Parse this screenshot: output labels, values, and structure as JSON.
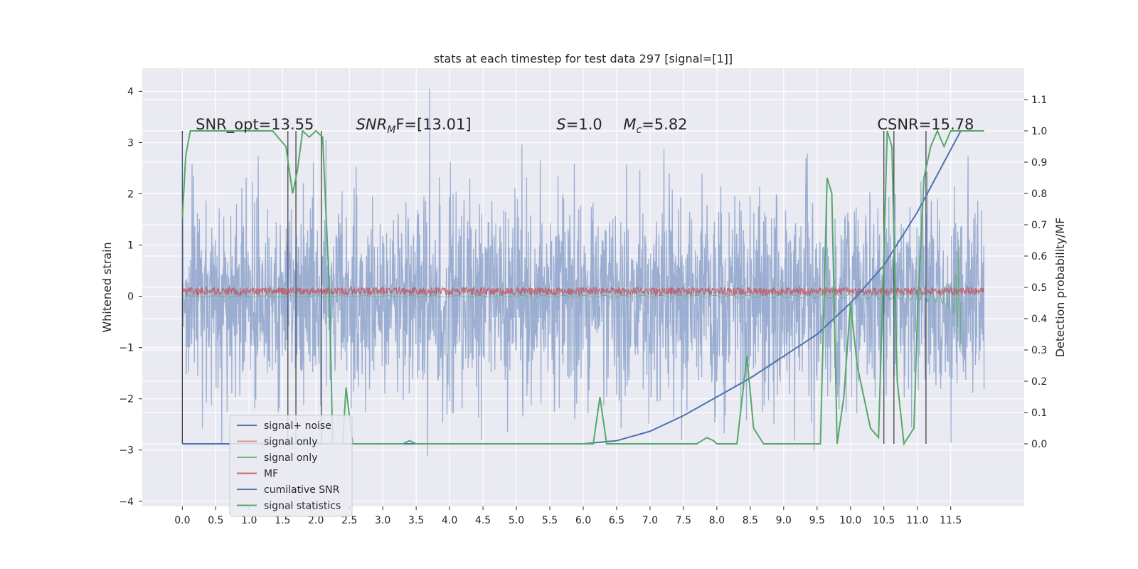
{
  "chart_data": {
    "type": "line",
    "title": "stats at each timestep for test data 297 [signal=[1]]",
    "ylabel": "Whitened strain",
    "y2label": "Detection probability/MF",
    "xlim": [
      -0.6,
      12.6
    ],
    "ylim": [
      -4.1,
      4.45
    ],
    "y2lim": [
      -0.2,
      1.2
    ],
    "x_ticks": [
      "0.0",
      "0.5",
      "1.0",
      "1.5",
      "2.0",
      "2.5",
      "3.0",
      "3.5",
      "4.0",
      "4.5",
      "5.0",
      "5.5",
      "6.0",
      "6.5",
      "7.0",
      "7.5",
      "8.0",
      "8.5",
      "9.0",
      "9.5",
      "10.0",
      "10.5",
      "11.0",
      "11.5"
    ],
    "y_ticks": [
      "4",
      "3",
      "2",
      "1",
      "0",
      "−1",
      "−2",
      "−3",
      "−4"
    ],
    "y2_ticks": [
      "1.1",
      "1.0",
      "0.9",
      "0.8",
      "0.7",
      "0.6",
      "0.5",
      "0.4",
      "0.3",
      "0.2",
      "0.1",
      "0.0"
    ],
    "grid": true,
    "annotations": [
      {
        "id": "snr_opt",
        "text": "SNR_opt=13.55",
        "x": 0.2,
        "y2": 1.0
      },
      {
        "id": "snr_mf",
        "text": "SNR",
        "sub": "M",
        "rest": "F=[13.01]",
        "x": 2.6,
        "y2": 1.0
      },
      {
        "id": "s",
        "text": "S",
        "rest": "=1.0",
        "x": 5.6,
        "y2": 1.0
      },
      {
        "id": "mc",
        "text": "M",
        "sub": "c",
        "rest": "=5.82",
        "x": 6.6,
        "y2": 1.0
      },
      {
        "id": "csnr",
        "text": "CSNR=15.78",
        "x": 10.4,
        "y2": 1.0
      }
    ],
    "vlines_x": [
      0.0,
      1.58,
      1.7,
      2.08,
      10.5,
      10.65,
      11.13
    ],
    "series": [
      {
        "name": "signal+ noise",
        "color": "#4c72b0",
        "alpha": 0.5,
        "axis": "left",
        "x_range": [
          0,
          12
        ],
        "amplitude_sigma": 1.0,
        "samples": 2400,
        "peak": {
          "x": 3.7,
          "y": 4.05
        }
      },
      {
        "name": "signal only",
        "color": "#dd8452",
        "axis": "left",
        "note": "chirp"
      },
      {
        "name": "signal only",
        "color": "#55a868",
        "axis": "left",
        "chirp_end_x": 11.65,
        "chirp_start_x": 6.0,
        "chirp_max_amp": 1.1
      },
      {
        "name": "MF",
        "color": "#c44e52",
        "axis": "left",
        "level": 0.1,
        "jitter": 0.08
      },
      {
        "name": "cumilative SNR",
        "color": "#4c72b0",
        "axis": "right",
        "points": [
          [
            0,
            0.0
          ],
          [
            6.0,
            0.0
          ],
          [
            6.5,
            0.01
          ],
          [
            7.0,
            0.04
          ],
          [
            7.5,
            0.09
          ],
          [
            8.0,
            0.15
          ],
          [
            8.5,
            0.21
          ],
          [
            9.0,
            0.28
          ],
          [
            9.5,
            0.35
          ],
          [
            10.0,
            0.45
          ],
          [
            10.5,
            0.57
          ],
          [
            11.0,
            0.74
          ],
          [
            11.3,
            0.86
          ],
          [
            11.65,
            1.0
          ]
        ]
      },
      {
        "name": "signal statistics",
        "color": "#55a868",
        "axis": "right",
        "points": [
          [
            0,
            0.72
          ],
          [
            0.05,
            0.92
          ],
          [
            0.12,
            1.0
          ],
          [
            1.35,
            1.0
          ],
          [
            1.55,
            0.95
          ],
          [
            1.65,
            0.8
          ],
          [
            1.72,
            0.87
          ],
          [
            1.8,
            1.0
          ],
          [
            1.9,
            0.98
          ],
          [
            2.0,
            1.0
          ],
          [
            2.1,
            0.98
          ],
          [
            2.2,
            0.5
          ],
          [
            2.25,
            0.0
          ],
          [
            2.4,
            0.0
          ],
          [
            2.45,
            0.18
          ],
          [
            2.55,
            0.0
          ],
          [
            3.3,
            0.0
          ],
          [
            3.4,
            0.01
          ],
          [
            3.5,
            0.0
          ],
          [
            6.15,
            0.0
          ],
          [
            6.25,
            0.15
          ],
          [
            6.35,
            0.0
          ],
          [
            7.7,
            0.0
          ],
          [
            7.85,
            0.02
          ],
          [
            7.95,
            0.01
          ],
          [
            8.0,
            0.0
          ],
          [
            8.3,
            0.0
          ],
          [
            8.45,
            0.28
          ],
          [
            8.55,
            0.05
          ],
          [
            8.7,
            0.0
          ],
          [
            9.55,
            0.0
          ],
          [
            9.65,
            0.85
          ],
          [
            9.72,
            0.8
          ],
          [
            9.8,
            0.0
          ],
          [
            9.9,
            0.15
          ],
          [
            10.0,
            0.45
          ],
          [
            10.1,
            0.25
          ],
          [
            10.2,
            0.15
          ],
          [
            10.3,
            0.05
          ],
          [
            10.42,
            0.02
          ],
          [
            10.5,
            0.6
          ],
          [
            10.55,
            1.0
          ],
          [
            10.62,
            0.95
          ],
          [
            10.7,
            0.2
          ],
          [
            10.8,
            0.0
          ],
          [
            10.95,
            0.05
          ],
          [
            11.0,
            0.4
          ],
          [
            11.1,
            0.85
          ],
          [
            11.2,
            0.95
          ],
          [
            11.3,
            1.0
          ],
          [
            11.4,
            0.95
          ],
          [
            11.5,
            1.0
          ],
          [
            12.0,
            1.0
          ]
        ]
      }
    ],
    "legend": {
      "placement": "lower-left",
      "labels": [
        "signal+ noise",
        "signal only",
        "signal only",
        "MF",
        "cumilative SNR",
        "signal statistics"
      ],
      "colors": [
        "#4c72b0",
        "#dd8452",
        "#55a868",
        "#c44e52",
        "#4c72b0",
        "#55a868"
      ]
    }
  }
}
